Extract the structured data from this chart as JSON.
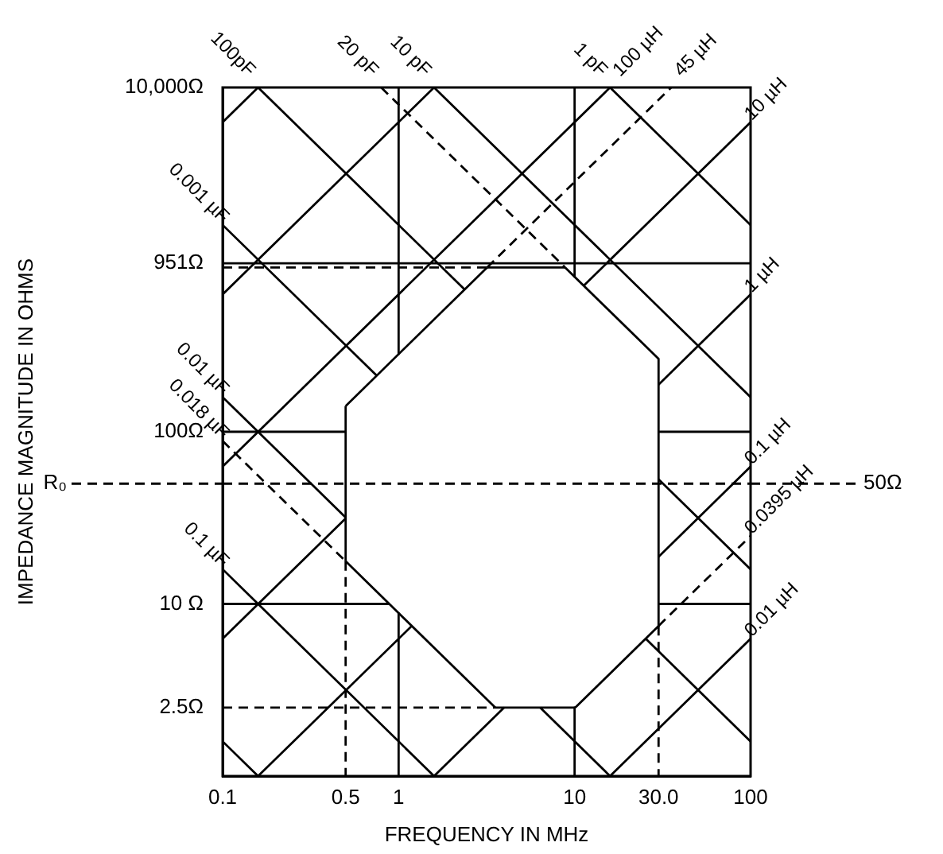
{
  "chart_data": {
    "type": "line",
    "xlabel": "FREQUENCY IN MHz",
    "ylabel": "IMPEDANCE MAGNITUDE IN OHMS",
    "log": "xy",
    "marker": "none",
    "xlim": [
      0.1,
      100
    ],
    "ylim": [
      1,
      10000
    ],
    "xticks": [
      0.1,
      0.5,
      1,
      10,
      {
        "value": 30,
        "label": "30.0"
      },
      100
    ],
    "yticks": [
      {
        "value": 2.5,
        "label": "2.5Ω"
      },
      {
        "value": 10,
        "label": "10 Ω"
      },
      {
        "value": 100,
        "label": "100Ω"
      },
      {
        "value": 951,
        "label": "951Ω"
      },
      {
        "value": 10000,
        "label": "10,000Ω"
      }
    ],
    "ref_lines": [
      {
        "axis": "y",
        "value": 50,
        "label": "R₀",
        "line_style": "dashed",
        "color": "#000000"
      }
    ],
    "annotations": [
      "50Ω"
    ],
    "series": [
      {
        "name": "1 pF",
        "color": "#000000",
        "x": [
          15.9,
          100
        ],
        "values": [
          10000,
          1590
        ]
      },
      {
        "name": "10 pF",
        "color": "#000000",
        "x": [
          1.59,
          100
        ],
        "values": [
          10000,
          159
        ]
      },
      {
        "name": "20 pF",
        "color": "#000000",
        "line_style": "dashed",
        "x": [
          0.796,
          8.84
        ],
        "values": [
          10000,
          900
        ]
      },
      {
        "name": "100pF",
        "color": "#000000",
        "x": [
          0.159,
          2.37
        ],
        "values": [
          10000,
          671
        ]
      },
      {
        "color": "#000000",
        "x": [
          30,
          100
        ],
        "values": [
          53,
          15.9
        ]
      },
      {
        "name": "0.001 µF",
        "color": "#000000",
        "x": [
          0.1,
          0.75
        ],
        "values": [
          1590,
          212
        ]
      },
      {
        "color": "#000000",
        "x": [
          25.3,
          100
        ],
        "values": [
          6.29,
          1.59
        ]
      },
      {
        "name": "0.01 µF",
        "color": "#000000",
        "x": [
          0.1,
          0.5
        ],
        "values": [
          159,
          31.8
        ]
      },
      {
        "color": "#000000",
        "x": [
          6.37,
          15.9
        ],
        "values": [
          2.5,
          1
        ]
      },
      {
        "name": "0.018 µF",
        "color": "#000000",
        "line_style": "dashed",
        "x": [
          0.1,
          0.5
        ],
        "values": [
          88.4,
          17.7
        ]
      },
      {
        "name": "0.1 µF",
        "color": "#000000",
        "x": [
          0.1,
          1.59
        ],
        "values": [
          15.9,
          1
        ]
      },
      {
        "color": "#000000",
        "x": [
          0.1,
          0.159
        ],
        "values": [
          1.59,
          1
        ]
      },
      {
        "color": "#000000",
        "x": [
          0.1,
          0.159
        ],
        "values": [
          6280,
          10000
        ]
      },
      {
        "color": "#000000",
        "x": [
          0.1,
          1.59
        ],
        "values": [
          628,
          10000
        ]
      },
      {
        "name": "100 µH",
        "color": "#000000",
        "x": [
          0.1,
          15.9
        ],
        "values": [
          62.8,
          10000
        ]
      },
      {
        "name": "45 µH",
        "color": "#000000",
        "line_style": "dashed",
        "x": [
          3.18,
          35.4
        ],
        "values": [
          900,
          10000
        ]
      },
      {
        "color": "#000000",
        "x": [
          0.1,
          0.5
        ],
        "values": [
          6.28,
          31.4
        ]
      },
      {
        "name": "10 µH",
        "color": "#000000",
        "x": [
          11.3,
          100
        ],
        "values": [
          707,
          6280
        ]
      },
      {
        "color": "#000000",
        "x": [
          0.159,
          1.19
        ],
        "values": [
          1,
          7.46
        ]
      },
      {
        "name": "1 µH",
        "color": "#000000",
        "x": [
          30,
          100
        ],
        "values": [
          188,
          628
        ]
      },
      {
        "color": "#000000",
        "x": [
          1.59,
          3.98
        ],
        "values": [
          1,
          2.5
        ]
      },
      {
        "name": "0.1 µH",
        "color": "#000000",
        "x": [
          30,
          100
        ],
        "values": [
          18.8,
          62.8
        ]
      },
      {
        "name": "0.0395 µH",
        "color": "#000000",
        "line_style": "dashed",
        "x": [
          30,
          100
        ],
        "values": [
          7.45,
          24.8
        ]
      },
      {
        "name": "0.01 µH",
        "color": "#000000",
        "x": [
          15.9,
          100
        ],
        "values": [
          1,
          6.28
        ]
      },
      {
        "color": "#000000",
        "x": [
          0.5,
          3.18
        ],
        "values": [
          141,
          900
        ]
      },
      {
        "color": "#000000",
        "x": [
          3.18,
          8.84
        ],
        "values": [
          900,
          900
        ]
      },
      {
        "color": "#000000",
        "x": [
          8.84,
          30
        ],
        "values": [
          900,
          265
        ]
      },
      {
        "color": "#000000",
        "x": [
          30,
          30
        ],
        "values": [
          265,
          7.45
        ]
      },
      {
        "color": "#000000",
        "x": [
          10.1,
          30
        ],
        "values": [
          2.5,
          7.45
        ]
      },
      {
        "color": "#000000",
        "x": [
          3.54,
          10.1
        ],
        "values": [
          2.5,
          2.5
        ]
      },
      {
        "color": "#000000",
        "x": [
          0.5,
          3.54
        ],
        "values": [
          17.7,
          2.5
        ]
      },
      {
        "color": "#000000",
        "x": [
          0.5,
          0.5
        ],
        "values": [
          17.7,
          141
        ]
      },
      {
        "color": "#000000",
        "x": [
          0.1,
          100
        ],
        "values": [
          951,
          951
        ]
      },
      {
        "color": "#000000",
        "line_style": "dashed",
        "x": [
          0.1,
          3.18
        ],
        "values": [
          900,
          900
        ]
      },
      {
        "color": "#000000",
        "x": [
          0.1,
          0.5
        ],
        "values": [
          100,
          100
        ]
      },
      {
        "color": "#000000",
        "x": [
          30,
          100
        ],
        "values": [
          100,
          100
        ]
      },
      {
        "color": "#000000",
        "x": [
          0.1,
          0.884
        ],
        "values": [
          10,
          10
        ]
      },
      {
        "color": "#000000",
        "x": [
          30,
          100
        ],
        "values": [
          10,
          10
        ]
      },
      {
        "color": "#000000",
        "line_style": "dashed",
        "x": [
          0.1,
          3.54
        ],
        "values": [
          2.5,
          2.5
        ]
      },
      {
        "color": "#000000",
        "x": [
          1,
          1
        ],
        "values": [
          10000,
          283
        ]
      },
      {
        "color": "#000000",
        "x": [
          1,
          1
        ],
        "values": [
          8.84,
          1
        ]
      },
      {
        "color": "#000000",
        "x": [
          10,
          10
        ],
        "values": [
          10000,
          796
        ]
      },
      {
        "color": "#000000",
        "x": [
          10,
          10
        ],
        "values": [
          2.5,
          1
        ]
      },
      {
        "color": "#000000",
        "line_style": "dashed",
        "x": [
          0.5,
          0.5
        ],
        "values": [
          17.7,
          1
        ]
      },
      {
        "color": "#000000",
        "line_style": "dashed",
        "x": [
          30,
          30
        ],
        "values": [
          7.45,
          1
        ]
      }
    ]
  }
}
